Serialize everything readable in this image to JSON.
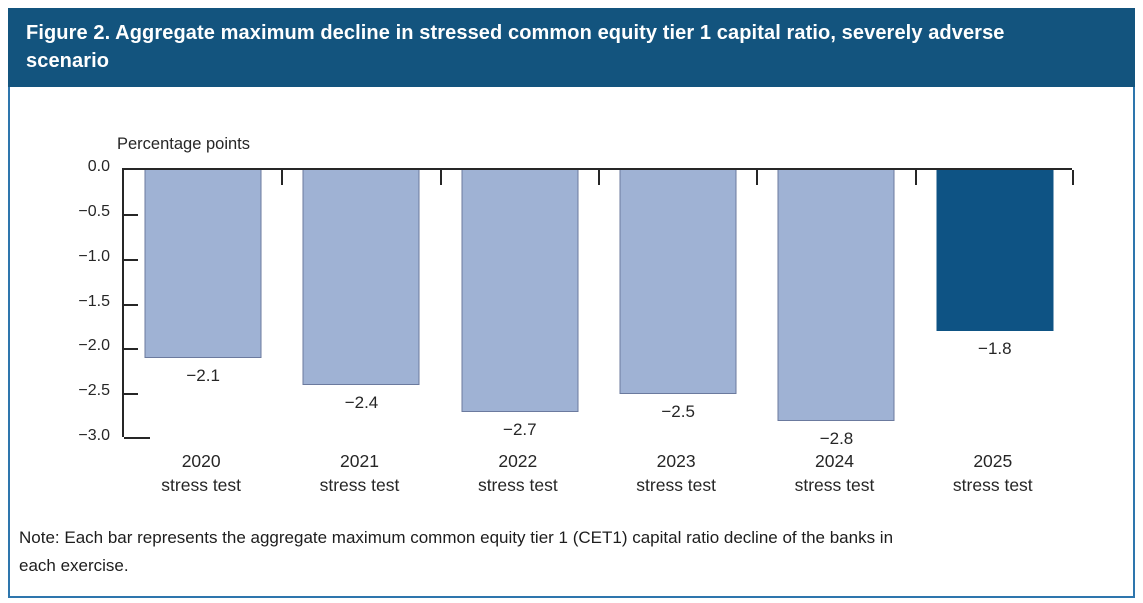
{
  "figure": {
    "title_lines": [
      "Figure 2. Aggregate maximum decline in stressed common equity tier 1 capital ratio, severely adverse",
      "scenario"
    ],
    "note_lines": [
      "Note: Each bar represents the aggregate maximum common equity tier 1 (CET1) capital ratio decline of the banks in",
      "each exercise."
    ]
  },
  "axis": {
    "unit_label": "Percentage points",
    "y_ticks": [
      "0.0",
      "−0.5",
      "−1.0",
      "−1.5",
      "−2.0",
      "−2.5",
      "−3.0"
    ]
  },
  "bars": [
    {
      "year": "2020",
      "subtitle": "stress test",
      "value": -2.1,
      "label": "−2.1",
      "color": "#9fb2d4",
      "border": "#6b7a9e"
    },
    {
      "year": "2021",
      "subtitle": "stress test",
      "value": -2.4,
      "label": "−2.4",
      "color": "#9fb2d4",
      "border": "#6b7a9e"
    },
    {
      "year": "2022",
      "subtitle": "stress test",
      "value": -2.7,
      "label": "−2.7",
      "color": "#9fb2d4",
      "border": "#6b7a9e"
    },
    {
      "year": "2023",
      "subtitle": "stress test",
      "value": -2.5,
      "label": "−2.5",
      "color": "#9fb2d4",
      "border": "#6b7a9e"
    },
    {
      "year": "2024",
      "subtitle": "stress test",
      "value": -2.8,
      "label": "−2.8",
      "color": "#9fb2d4",
      "border": "#6b7a9e"
    },
    {
      "year": "2025",
      "subtitle": "stress test",
      "value": -1.8,
      "label": "−1.8",
      "color": "#0e5384",
      "border": "#0e5384"
    }
  ],
  "colors": {
    "banner_bg": "#13547e",
    "banner_text": "#ffffff",
    "frame_border": "#2e76ad",
    "bar_light": "#9fb2d4",
    "bar_dark": "#0e5384",
    "axis": "#262626"
  },
  "chart_data": {
    "type": "bar",
    "title": "Figure 2. Aggregate maximum decline in stressed common equity tier 1 capital ratio, severely adverse scenario",
    "categories": [
      "2020 stress test",
      "2021 stress test",
      "2022 stress test",
      "2023 stress test",
      "2024 stress test",
      "2025 stress test"
    ],
    "values": [
      -2.1,
      -2.4,
      -2.7,
      -2.5,
      -2.8,
      -1.8
    ],
    "data_labels": [
      "−2.1",
      "−2.4",
      "−2.7",
      "−2.5",
      "−2.8",
      "−1.8"
    ],
    "xlabel": "",
    "ylabel": "Percentage points",
    "ylim": [
      -3.0,
      0.0
    ],
    "y_tick_step": 0.5,
    "grid": false,
    "legend": false,
    "highlight_category": "2025 stress test",
    "note": "Note: Each bar represents the aggregate maximum common equity tier 1 (CET1) capital ratio decline of the banks in each exercise."
  }
}
